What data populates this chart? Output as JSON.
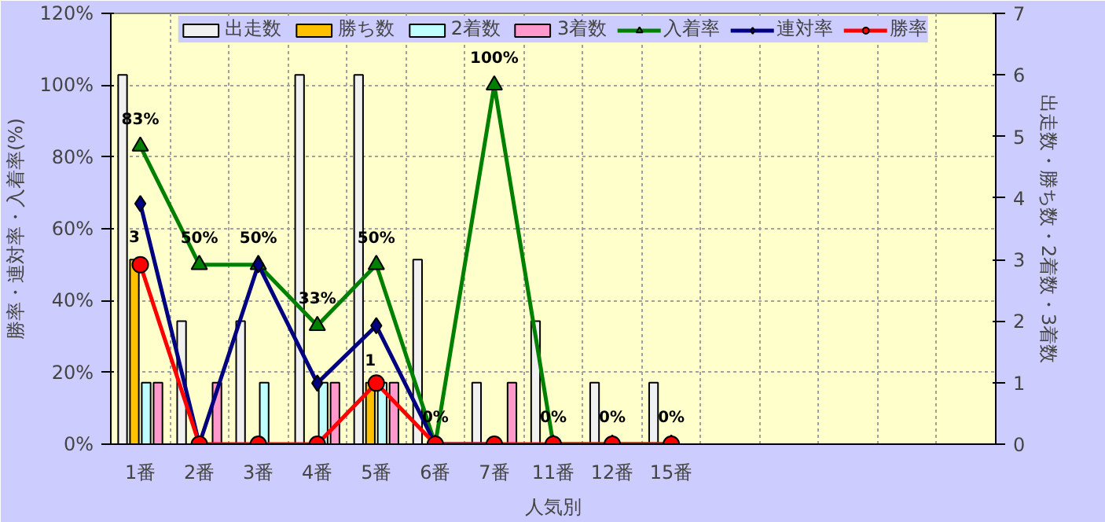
{
  "chart_data": {
    "type": "bar",
    "xlabel": "人気別",
    "ylabel": "勝率・連対率・入着率(%)",
    "y2label": "出走数・勝ち数・2着数・3着数",
    "categories": [
      "1番",
      "2番",
      "3番",
      "4番",
      "5番",
      "6番",
      "7番",
      "11番",
      "12番",
      "15番",
      null,
      null,
      null,
      null,
      null
    ],
    "series": [
      {
        "name": "出走数",
        "axis": "y2",
        "color": "#f0f0f0",
        "values": [
          6,
          2,
          2,
          6,
          6,
          3,
          1,
          2,
          1,
          1,
          null,
          null,
          null,
          null,
          null
        ]
      },
      {
        "name": "勝ち数",
        "axis": "y2",
        "color": "#ffc000",
        "values": [
          3,
          0,
          0,
          0,
          1,
          0,
          0,
          0,
          0,
          0,
          null,
          null,
          null,
          null,
          null
        ],
        "value_labels": [
          "3",
          null,
          null,
          null,
          "1",
          null,
          null,
          null,
          null,
          null,
          null,
          null,
          null,
          null,
          null
        ]
      },
      {
        "name": "2着数",
        "axis": "y2",
        "color": "#c0ffff",
        "values": [
          1,
          0,
          1,
          1,
          1,
          0,
          0,
          0,
          0,
          0,
          null,
          null,
          null,
          null,
          null
        ]
      },
      {
        "name": "3着数",
        "axis": "y2",
        "color": "#ff99cc",
        "values": [
          1,
          1,
          0,
          1,
          1,
          0,
          1,
          0,
          0,
          0,
          null,
          null,
          null,
          null,
          null
        ]
      },
      {
        "name": "入着率",
        "type": "line",
        "marker": "triangle",
        "color": "#008000",
        "values": [
          83,
          50,
          50,
          33,
          50,
          0,
          100,
          0,
          0,
          0,
          null,
          null,
          null,
          null,
          null
        ],
        "value_labels": [
          "83%",
          "50%",
          "50%",
          "33%",
          "50%",
          "0%",
          "100%",
          "0%",
          "0%",
          "0%",
          null,
          null,
          null,
          null,
          null
        ]
      },
      {
        "name": "連対率",
        "type": "line",
        "marker": "diamond",
        "color": "#000080",
        "values": [
          67,
          0,
          50,
          17,
          33,
          0,
          0,
          null,
          null,
          null,
          null,
          null,
          null,
          null,
          null
        ]
      },
      {
        "name": "勝率",
        "type": "line",
        "marker": "circle",
        "color": "#ff0000",
        "values": [
          50,
          0,
          0,
          0,
          17,
          0,
          0,
          0,
          0,
          0,
          null,
          null,
          null,
          null,
          null
        ]
      }
    ],
    "ylim": [
      0,
      120
    ],
    "yticks": [
      {
        "value": 0,
        "label": "0%"
      },
      {
        "value": 20,
        "label": "20%"
      },
      {
        "value": 40,
        "label": "40%"
      },
      {
        "value": 60,
        "label": "60%"
      },
      {
        "value": 80,
        "label": "80%"
      },
      {
        "value": 100,
        "label": "100%"
      },
      {
        "value": 120,
        "label": "120%"
      }
    ],
    "y2lim": [
      0,
      7
    ],
    "y2ticks": [
      0,
      1,
      2,
      3,
      4,
      5,
      6,
      7
    ],
    "grid": true,
    "legend": "top"
  }
}
